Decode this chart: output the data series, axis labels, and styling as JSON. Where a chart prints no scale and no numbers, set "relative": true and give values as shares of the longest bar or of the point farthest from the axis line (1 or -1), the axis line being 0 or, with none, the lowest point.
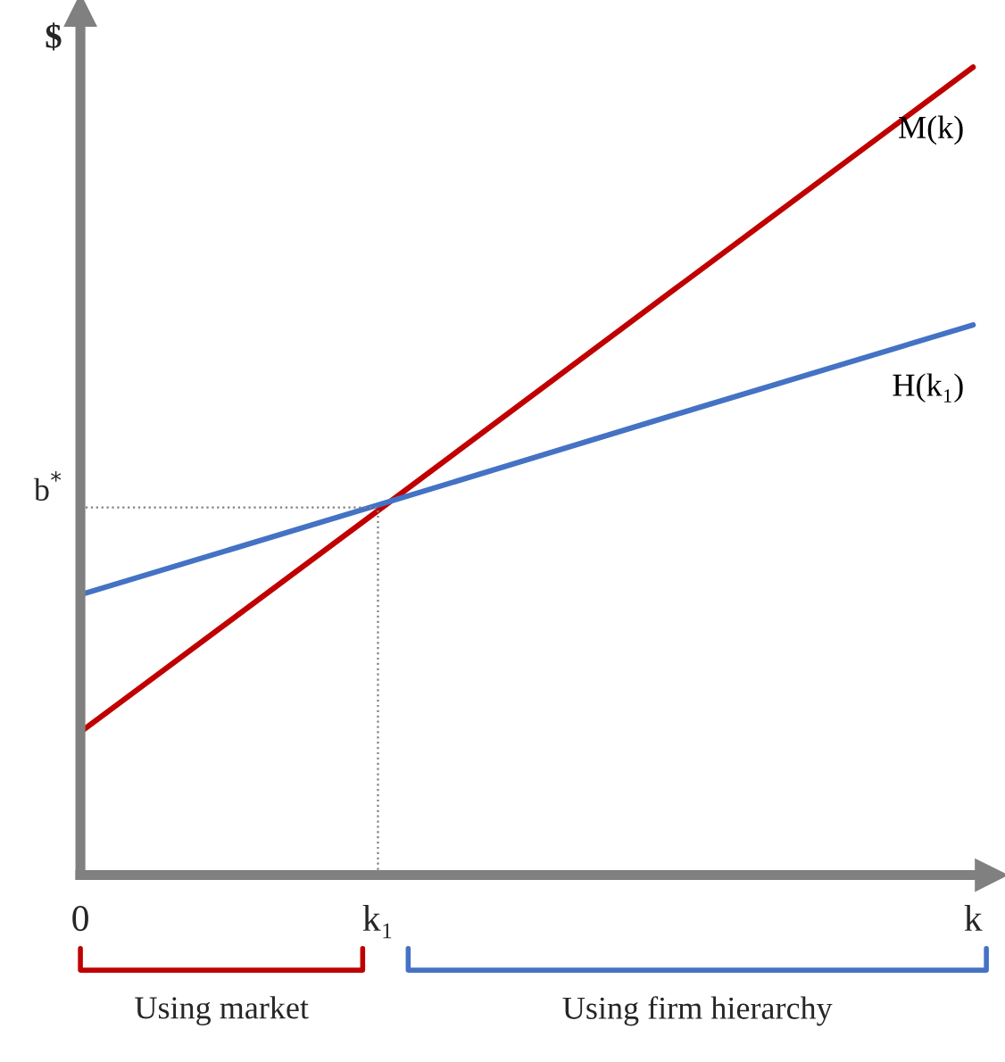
{
  "chart_data": {
    "type": "line",
    "relative": true,
    "ylabel": "$",
    "categories": [
      "0",
      "k₁",
      null,
      "k"
    ],
    "series": [
      {
        "name": "M(k)",
        "color": "#c00000",
        "values": [
          0.177,
          0.451,
          0.726,
          1
        ]
      },
      {
        "name": "H(k₁)",
        "color": "#4472c4",
        "values": [
          0.347,
          0.458,
          0.57,
          0.681
        ]
      }
    ],
    "ref_lines": [
      {
        "axis": "y",
        "value": 0.455,
        "label": "b$^{*}$",
        "color": "#808080",
        "line_style": "dotted"
      },
      {
        "axis": "x",
        "value": "k₁",
        "label": null,
        "color": "#808080",
        "line_style": "dotted"
      }
    ],
    "annotations": [
      "Using market",
      "Using firm hierarchy"
    ],
    "grid": false,
    "legend": false,
    "marker": "none",
    "line_style": "solid"
  }
}
